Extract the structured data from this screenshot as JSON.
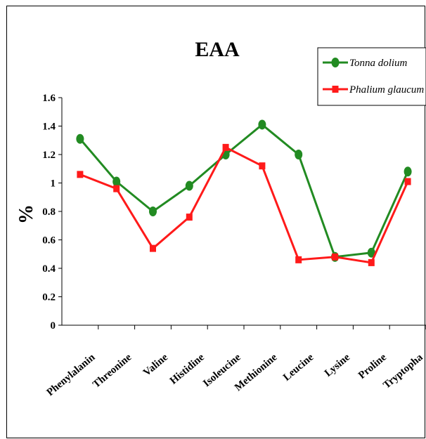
{
  "chart_data": {
    "type": "line",
    "title": "EAA",
    "ylabel": "%",
    "xlabel": "",
    "categories": [
      "Phenylalanine",
      "Threonine",
      "Valine",
      "Histidine",
      "Isoleucine",
      "Methionine",
      "Leucine",
      "Lysine",
      "Proline",
      "Tryptophan"
    ],
    "category_labels": [
      "Phenylalanin",
      "Threonine",
      "Valine",
      "Histidine",
      "Isoleucine",
      "Methionine",
      "Leucine",
      "Lysine",
      "Proline",
      "Tryptopha"
    ],
    "ylim": [
      0,
      1.6
    ],
    "yticks": [
      "0",
      "0.2",
      "0.4",
      "0.6",
      "0.8",
      "1",
      "1.2",
      "1.4",
      "1.6"
    ],
    "grid": false,
    "legend_position": "top-right",
    "series": [
      {
        "name": "Tonna dolium",
        "color": "#228B22",
        "marker": "circle",
        "values": [
          1.31,
          1.01,
          0.8,
          0.98,
          1.2,
          1.41,
          1.2,
          0.48,
          0.51,
          1.08
        ]
      },
      {
        "name": "Phalium glaucum",
        "color": "#FF1A1A",
        "marker": "square",
        "values": [
          1.06,
          0.96,
          0.54,
          0.76,
          1.25,
          1.12,
          0.46,
          0.48,
          0.44,
          1.01
        ]
      }
    ]
  }
}
